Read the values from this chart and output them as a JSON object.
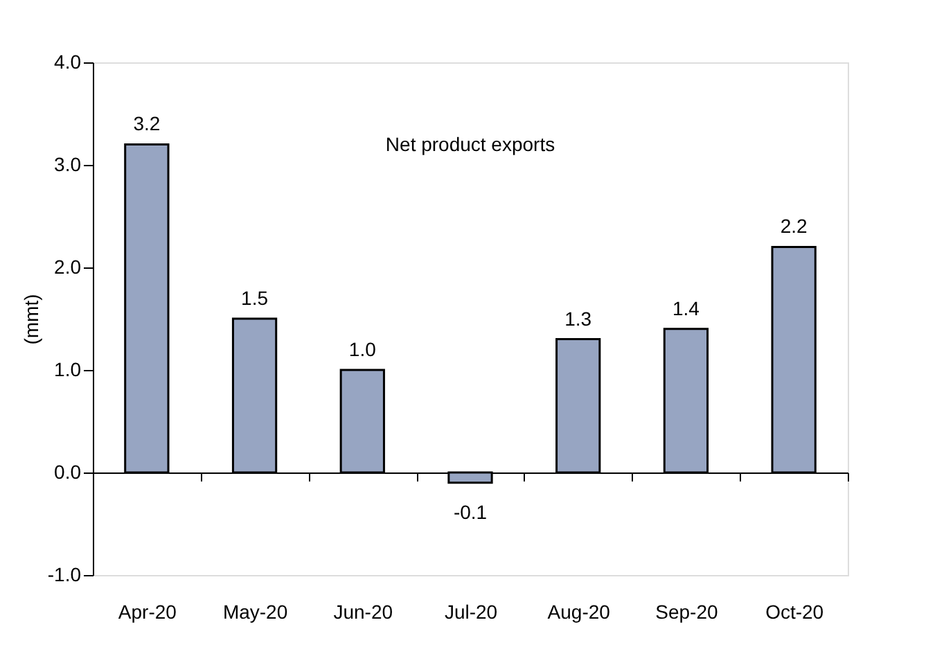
{
  "chart_data": {
    "type": "bar",
    "title": "Net product exports",
    "ylabel": "(mmt)",
    "categories": [
      "Apr-20",
      "May-20",
      "Jun-20",
      "Jul-20",
      "Aug-20",
      "Sep-20",
      "Oct-20"
    ],
    "values": [
      3.2,
      1.5,
      1.0,
      -0.1,
      1.3,
      1.4,
      2.2
    ],
    "color": "#97a5c2",
    "ylim": [
      -1,
      4
    ],
    "yticks": [
      {
        "value": -1,
        "label": "-1.0"
      },
      {
        "value": 0,
        "label": "0.0"
      },
      {
        "value": 1,
        "label": "1.0"
      },
      {
        "value": 2,
        "label": "2.0"
      },
      {
        "value": 3,
        "label": "3.0"
      },
      {
        "value": 4,
        "label": "4.0"
      }
    ],
    "value_labels": [
      "3.2",
      "1.5",
      "1.0",
      "-0.1",
      "1.3",
      "1.4",
      "2.2"
    ]
  }
}
